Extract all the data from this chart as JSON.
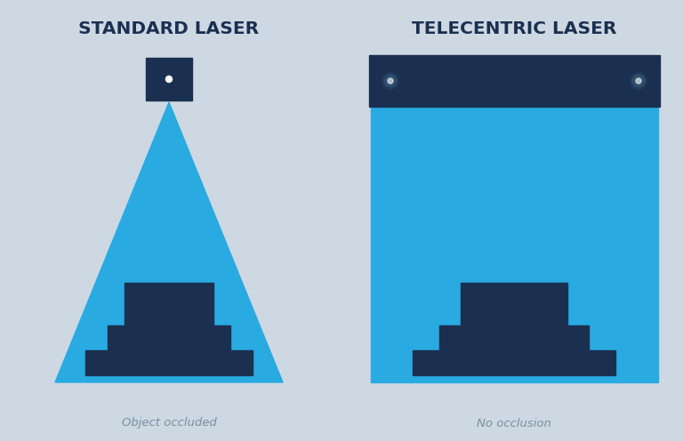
{
  "bg_color": "#cdd8e3",
  "light_blue": "#29aae1",
  "dark_blue": "#1b3050",
  "white": "#ffffff",
  "title_color": "#1b3050",
  "caption_color": "#7a8fa0",
  "title_left": "STANDARD LASER",
  "title_right": "TELECENTRIC LASER",
  "caption_left": "Object occluded",
  "caption_right": "No occlusion",
  "title_fontsize": 14.5,
  "caption_fontsize": 9.5,
  "fig_w": 7.68,
  "fig_h": 4.96,
  "dpi": 100
}
